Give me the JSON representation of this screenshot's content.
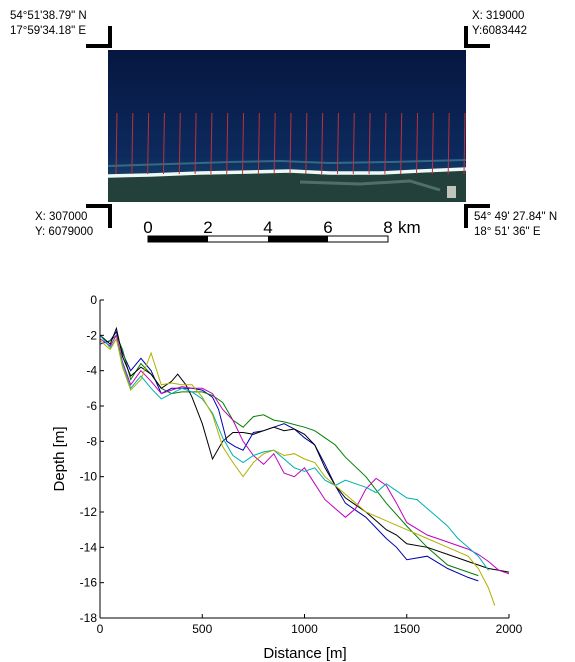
{
  "map": {
    "top_left": {
      "lat": "54°51'38.79\" N",
      "lon": "17°59'34.18\" E"
    },
    "top_right": {
      "x": "X: 319000",
      "y": "Y:6083442"
    },
    "bottom_left": {
      "x": "X: 307000",
      "y": "Y: 6079000"
    },
    "bottom_right": {
      "lat": "54° 49' 27.84\" N",
      "lon": "18° 51' 36\" E"
    },
    "scale_labels": [
      "0",
      "2",
      "4",
      "6",
      "8"
    ],
    "scale_unit": "km",
    "transect_count": 23,
    "colors": {
      "sea": "#0b1f4d",
      "transect": "#c0303a",
      "shore": "#e8f4f0",
      "land": "#1a3a2c"
    }
  },
  "chart_data": {
    "type": "line",
    "title": "",
    "xlabel": "Distance [m]",
    "ylabel": "Depth [m]",
    "xlim": [
      0,
      2000
    ],
    "ylim": [
      -18,
      0
    ],
    "xticks": [
      0,
      500,
      1000,
      1500,
      2000
    ],
    "yticks": [
      0,
      -2,
      -4,
      -6,
      -8,
      -10,
      -12,
      -14,
      -16,
      -18
    ],
    "grid": false,
    "series": [
      {
        "color": "#0000b0",
        "x": [
          0,
          50,
          80,
          110,
          150,
          200,
          250,
          300,
          350,
          400,
          450,
          500,
          550,
          580,
          620,
          660,
          700,
          750,
          800,
          850,
          900,
          950,
          1000,
          1050,
          1100,
          1150,
          1200,
          1300,
          1400,
          1450,
          1500,
          1600,
          1700,
          1800,
          1850
        ],
        "y": [
          -2.5,
          -2.3,
          -1.8,
          -3,
          -4,
          -3.3,
          -4,
          -5.3,
          -5,
          -5,
          -5,
          -5.1,
          -5.5,
          -6.2,
          -8,
          -8.3,
          -8.5,
          -7.5,
          -7.4,
          -7.2,
          -7,
          -7.3,
          -7.8,
          -8.2,
          -9.3,
          -10.5,
          -11.5,
          -12.3,
          -13.5,
          -14,
          -14.7,
          -14.5,
          -15.2,
          -15.7,
          -15.9
        ]
      },
      {
        "color": "#008000",
        "x": [
          0,
          40,
          80,
          110,
          150,
          200,
          250,
          300,
          350,
          400,
          500,
          550,
          600,
          650,
          700,
          750,
          800,
          850,
          900,
          1000,
          1050,
          1100,
          1150,
          1200,
          1300,
          1400,
          1500,
          1600,
          1700,
          1800,
          1850
        ],
        "y": [
          -2,
          -2.4,
          -2,
          -2.8,
          -4.5,
          -3.6,
          -4.2,
          -5,
          -5.3,
          -5.2,
          -5.2,
          -5.4,
          -5.8,
          -6.8,
          -7.2,
          -6.6,
          -6.5,
          -6.8,
          -6.9,
          -7.2,
          -7.4,
          -7.8,
          -8.2,
          -8.9,
          -10,
          -11.5,
          -12.8,
          -14,
          -15,
          -15.4,
          -15.6
        ]
      },
      {
        "color": "#000000",
        "x": [
          0,
          50,
          80,
          110,
          150,
          200,
          250,
          300,
          350,
          380,
          420,
          450,
          500,
          550,
          600,
          650,
          700,
          750,
          800,
          850,
          900,
          950,
          1000,
          1050,
          1100,
          1150,
          1200,
          1300,
          1350,
          1400,
          1450,
          1500,
          1600,
          1700,
          1800,
          1850,
          1900,
          1950,
          2000
        ],
        "y": [
          -2,
          -2.5,
          -1.6,
          -3.2,
          -4.3,
          -3.8,
          -4.2,
          -5,
          -4.6,
          -4.2,
          -4.8,
          -5.5,
          -7,
          -9,
          -8,
          -7.5,
          -7.5,
          -7.6,
          -7.4,
          -7.2,
          -7.4,
          -7.3,
          -7.6,
          -8.2,
          -9.5,
          -10.5,
          -11.2,
          -12,
          -12.5,
          -13,
          -13.3,
          -13.8,
          -14,
          -14.4,
          -14.8,
          -15,
          -15.2,
          -15.3,
          -15.4
        ]
      },
      {
        "color": "#c000c0",
        "x": [
          0,
          50,
          80,
          110,
          150,
          200,
          250,
          300,
          350,
          400,
          450,
          500,
          550,
          600,
          650,
          700,
          750,
          800,
          850,
          900,
          950,
          1000,
          1050,
          1100,
          1150,
          1200,
          1250,
          1300,
          1350,
          1400,
          1450,
          1500,
          1600,
          1700,
          1800,
          1850,
          1900,
          1950,
          2000
        ],
        "y": [
          -2.2,
          -2.6,
          -2,
          -3.5,
          -4.8,
          -4,
          -4.6,
          -5.3,
          -5.1,
          -4.9,
          -5,
          -5,
          -5.3,
          -6.2,
          -6.8,
          -8,
          -8.8,
          -9.3,
          -8.7,
          -9.8,
          -10,
          -9.5,
          -10.4,
          -11.3,
          -11.8,
          -12.3,
          -11.8,
          -10.7,
          -10.1,
          -10.5,
          -11.5,
          -12.6,
          -13.3,
          -13.7,
          -14.1,
          -14.4,
          -14.8,
          -15.3,
          -15.5
        ]
      },
      {
        "color": "#00b0b0",
        "x": [
          0,
          50,
          80,
          110,
          150,
          200,
          250,
          300,
          350,
          400,
          450,
          500,
          550,
          600,
          650,
          700,
          750,
          800,
          850,
          900,
          950,
          1000,
          1050,
          1100,
          1150,
          1200,
          1300,
          1350,
          1400,
          1450,
          1500,
          1550,
          1600,
          1650,
          1700,
          1750,
          1800,
          1850,
          1900
        ],
        "y": [
          -2,
          -2.7,
          -2.2,
          -3.6,
          -5,
          -4.3,
          -5,
          -5.6,
          -5.3,
          -5,
          -5.2,
          -5.6,
          -6.4,
          -7.8,
          -8.8,
          -9.2,
          -8.8,
          -8.6,
          -8.5,
          -9,
          -9.5,
          -9.7,
          -9.5,
          -10.2,
          -10.5,
          -10.2,
          -10.6,
          -10.9,
          -10.4,
          -10.8,
          -11.2,
          -11.3,
          -11.8,
          -12.3,
          -12.8,
          -13.5,
          -14,
          -14.5,
          -15.3
        ]
      },
      {
        "color": "#b0b000",
        "x": [
          0,
          50,
          80,
          110,
          150,
          200,
          250,
          300,
          350,
          400,
          450,
          500,
          550,
          600,
          650,
          700,
          750,
          800,
          850,
          900,
          950,
          1000,
          1050,
          1100,
          1150,
          1200,
          1300,
          1400,
          1500,
          1600,
          1700,
          1800,
          1850,
          1900,
          1930
        ],
        "y": [
          -2.3,
          -2.8,
          -2.2,
          -3.8,
          -5.1,
          -4.5,
          -3,
          -4.8,
          -4.7,
          -4.8,
          -4.8,
          -5.5,
          -6.5,
          -8.3,
          -9.2,
          -10,
          -9.2,
          -8.7,
          -8.5,
          -8.8,
          -8.7,
          -9,
          -9.2,
          -10,
          -10.5,
          -11,
          -12,
          -12.5,
          -13,
          -13.5,
          -14,
          -14.5,
          -15.2,
          -16.3,
          -17.3
        ]
      }
    ]
  }
}
